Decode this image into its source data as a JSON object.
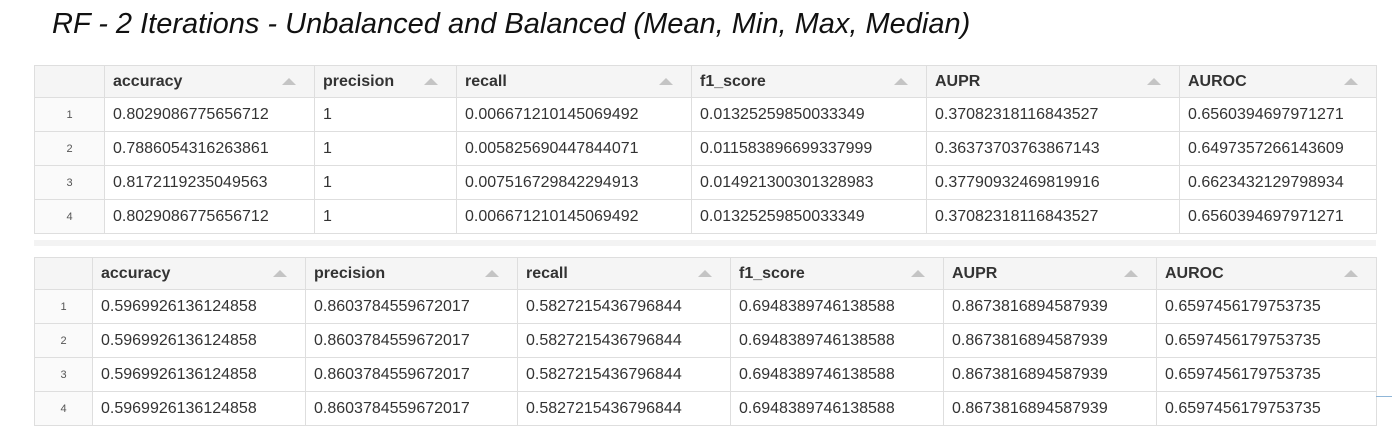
{
  "page": {
    "title": "RF - 2 Iterations - Unbalanced and Balanced (Mean, Min, Max, Median)"
  },
  "tables": [
    {
      "columns": [
        "accuracy",
        "precision",
        "recall",
        "f1_score",
        "AUPR",
        "AUROC"
      ],
      "rows": [
        {
          "index": "1",
          "cells": [
            "0.8029086775656712",
            "1",
            "0.006671210145069492",
            "0.01325259850033349",
            "0.37082318116843527",
            "0.6560394697971271"
          ]
        },
        {
          "index": "2",
          "cells": [
            "0.7886054316263861",
            "1",
            "0.005825690447844071",
            "0.011583896699337999",
            "0.36373703763867143",
            "0.6497357266143609"
          ]
        },
        {
          "index": "3",
          "cells": [
            "0.8172119235049563",
            "1",
            "0.007516729842294913",
            "0.014921300301328983",
            "0.37790932469819916",
            "0.6623432129798934"
          ]
        },
        {
          "index": "4",
          "cells": [
            "0.8029086775656712",
            "1",
            "0.006671210145069492",
            "0.01325259850033349",
            "0.37082318116843527",
            "0.6560394697971271"
          ]
        }
      ]
    },
    {
      "columns": [
        "accuracy",
        "precision",
        "recall",
        "f1_score",
        "AUPR",
        "AUROC"
      ],
      "rows": [
        {
          "index": "1",
          "cells": [
            "0.5969926136124858",
            "0.8603784559672017",
            "0.5827215436796844",
            "0.6948389746138588",
            "0.8673816894587939",
            "0.6597456179753735"
          ]
        },
        {
          "index": "2",
          "cells": [
            "0.5969926136124858",
            "0.8603784559672017",
            "0.5827215436796844",
            "0.6948389746138588",
            "0.8673816894587939",
            "0.6597456179753735"
          ]
        },
        {
          "index": "3",
          "cells": [
            "0.5969926136124858",
            "0.8603784559672017",
            "0.5827215436796844",
            "0.6948389746138588",
            "0.8673816894587939",
            "0.6597456179753735"
          ]
        },
        {
          "index": "4",
          "cells": [
            "0.5969926136124858",
            "0.8603784559672017",
            "0.5827215436796844",
            "0.6948389746138588",
            "0.8673816894587939",
            "0.6597456179753735"
          ]
        }
      ]
    }
  ]
}
